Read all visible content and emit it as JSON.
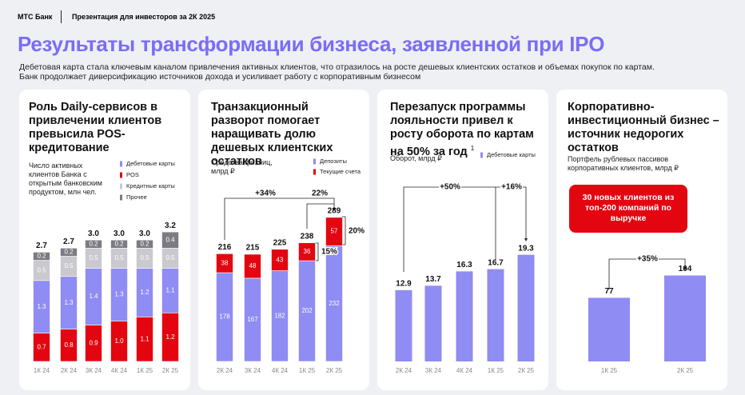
{
  "header": {
    "brand": "МТС Банк",
    "section": "Презентация для инвесторов за 2К 2025"
  },
  "title": "Результаты трансформации бизнеса, заявленной при IPO",
  "subtitle": [
    "Дебетовая карта стала ключевым каналом привлечения активных клиентов, что отразилось на росте дешевых клиентских остатков и объемах покупок по картам.",
    "Банк продолжает диверсификацию источников дохода и усиливает работу с корпоративным бизнесом"
  ],
  "chart_data": [
    {
      "type": "stacked_bar",
      "title": "Роль Daily-сервисов в привлечении клиентов превысила POS-кредитование",
      "ylabel": "Число активных клиентов Банка с открытым банковским продуктом, млн чел.",
      "categories": [
        "1К 24",
        "2К 24",
        "3К 24",
        "4К 24",
        "1К 25",
        "2К 25"
      ],
      "series": [
        {
          "name": "POS",
          "color": "#e30611",
          "values": [
            0.7,
            0.8,
            0.9,
            1.0,
            1.1,
            1.2
          ],
          "value_labels": [
            "0.7",
            "0.8",
            "0.9",
            "1.0",
            "1.1",
            "1.2"
          ]
        },
        {
          "name": "Дебетовые карты",
          "color": "#8f8cf3",
          "values": [
            1.3,
            1.3,
            1.4,
            1.3,
            1.2,
            1.1
          ]
        },
        {
          "name": "Кредитные карты",
          "color": "#c9c9cf",
          "values": [
            0.5,
            0.5,
            0.5,
            0.5,
            0.5,
            0.5
          ]
        },
        {
          "name": "Прочее",
          "color": "#7b7b82",
          "values": [
            0.2,
            0.2,
            0.2,
            0.2,
            0.2,
            0.4
          ]
        }
      ],
      "totals": [
        2.7,
        2.7,
        3.0,
        3.0,
        3.0,
        3.2
      ],
      "total_labels": [
        "2.7",
        "2.7",
        "3.0",
        "3.0",
        "3.0",
        "3.2"
      ],
      "ylim": [
        0,
        3.4
      ]
    },
    {
      "type": "stacked_bar",
      "title": "Транзакционный разворот помогает наращивать долю дешевых клиентских остатков",
      "ylabel": "Средства физлиц, млрд ₽",
      "categories": [
        "2К 24",
        "3К 24",
        "4К 24",
        "1К 25",
        "2К 25"
      ],
      "series": [
        {
          "name": "Депозиты",
          "color": "#8f8cf3",
          "values": [
            178,
            167,
            182,
            202,
            232
          ]
        },
        {
          "name": "Текущие счета",
          "color": "#e30611",
          "values": [
            38,
            48,
            43,
            36,
            57
          ]
        }
      ],
      "totals": [
        216,
        215,
        225,
        238,
        289
      ],
      "ylim": [
        0,
        300
      ],
      "annotations": [
        "+34%",
        "22%",
        "15%",
        "20%"
      ]
    },
    {
      "type": "bar",
      "title": "Перезапуск программы лояльности привел к росту оборота по картам на 50% за год",
      "title_note": "1",
      "ylabel": "Оборот, млрд ₽",
      "categories": [
        "2К 24",
        "3К 24",
        "4К 24",
        "1К 25",
        "2К 25"
      ],
      "series": [
        {
          "name": "Дебетовые карты",
          "color": "#8f8cf3",
          "values": [
            12.9,
            13.7,
            16.3,
            16.7,
            19.3
          ]
        }
      ],
      "ylim": [
        0,
        22
      ],
      "annotations": [
        "+50%",
        "+16%"
      ]
    },
    {
      "type": "bar",
      "title": "Корпоративно-инвестиционный бизнес – источник недорогих остатков",
      "ylabel": "Портфель рублевых пассивов корпоративных клиентов, млрд ₽",
      "categories": [
        "1К 25",
        "2К 25"
      ],
      "series": [
        {
          "color": "#8f8cf3",
          "values": [
            77,
            104
          ]
        }
      ],
      "ylim": [
        0,
        120
      ],
      "callout": "30 новых клиентов из топ-200 компаний по выручке",
      "annotations": [
        "+35%"
      ]
    }
  ]
}
